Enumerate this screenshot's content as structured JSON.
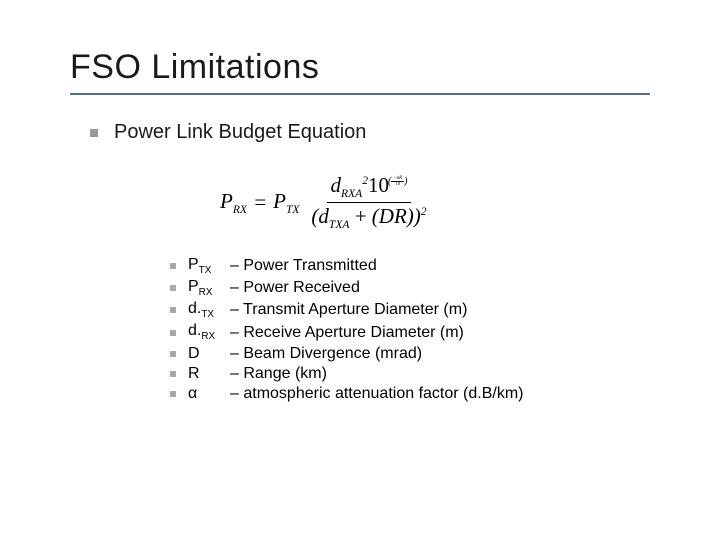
{
  "slide": {
    "title": "FSO Limitations",
    "title_underline_color": "#5b6b8f",
    "heading": "Power Link Budget Equation",
    "bullet_color": "#999999",
    "sub_bullet_color": "#a8a8a8",
    "title_fontsize": 34,
    "heading_fontsize": 20,
    "def_fontsize": 16
  },
  "equation": {
    "lhs_var": "P",
    "lhs_sub": "RX",
    "eq_sign": "=",
    "rhs_var": "P",
    "rhs_sub": "TX",
    "frac_num_var": "d",
    "frac_num_sub": "RXA",
    "frac_num_sup": "2",
    "ten": "10",
    "exp_num_prefix": "−",
    "exp_num_alpha": "α",
    "exp_num_R": "R",
    "exp_den": "10",
    "den_l_var": "d",
    "den_l_sub": "TXA",
    "den_plus": "+",
    "den_r_open": "(",
    "den_r_var": "DR",
    "den_r_close": ")",
    "den_outer_sup": "2"
  },
  "definitions": [
    {
      "symbol_html": "P<sub>TX</sub>",
      "desc": "– Power Transmitted"
    },
    {
      "symbol_html": "P<sub>RX</sub>",
      "desc": "– Power Received"
    },
    {
      "symbol_html": "d.<sub>TX</sub>",
      "desc": "– Transmit Aperture Diameter (m)"
    },
    {
      "symbol_html": "d.<sub>RX</sub>",
      "desc": "– Receive Aperture Diameter (m)"
    },
    {
      "symbol_html": "D",
      "desc": "– Beam Divergence (mrad)"
    },
    {
      "symbol_html": "R",
      "desc": "– Range (km)"
    },
    {
      "symbol_html": "α",
      "desc": "– atmospheric attenuation factor (d.B/km)"
    }
  ]
}
